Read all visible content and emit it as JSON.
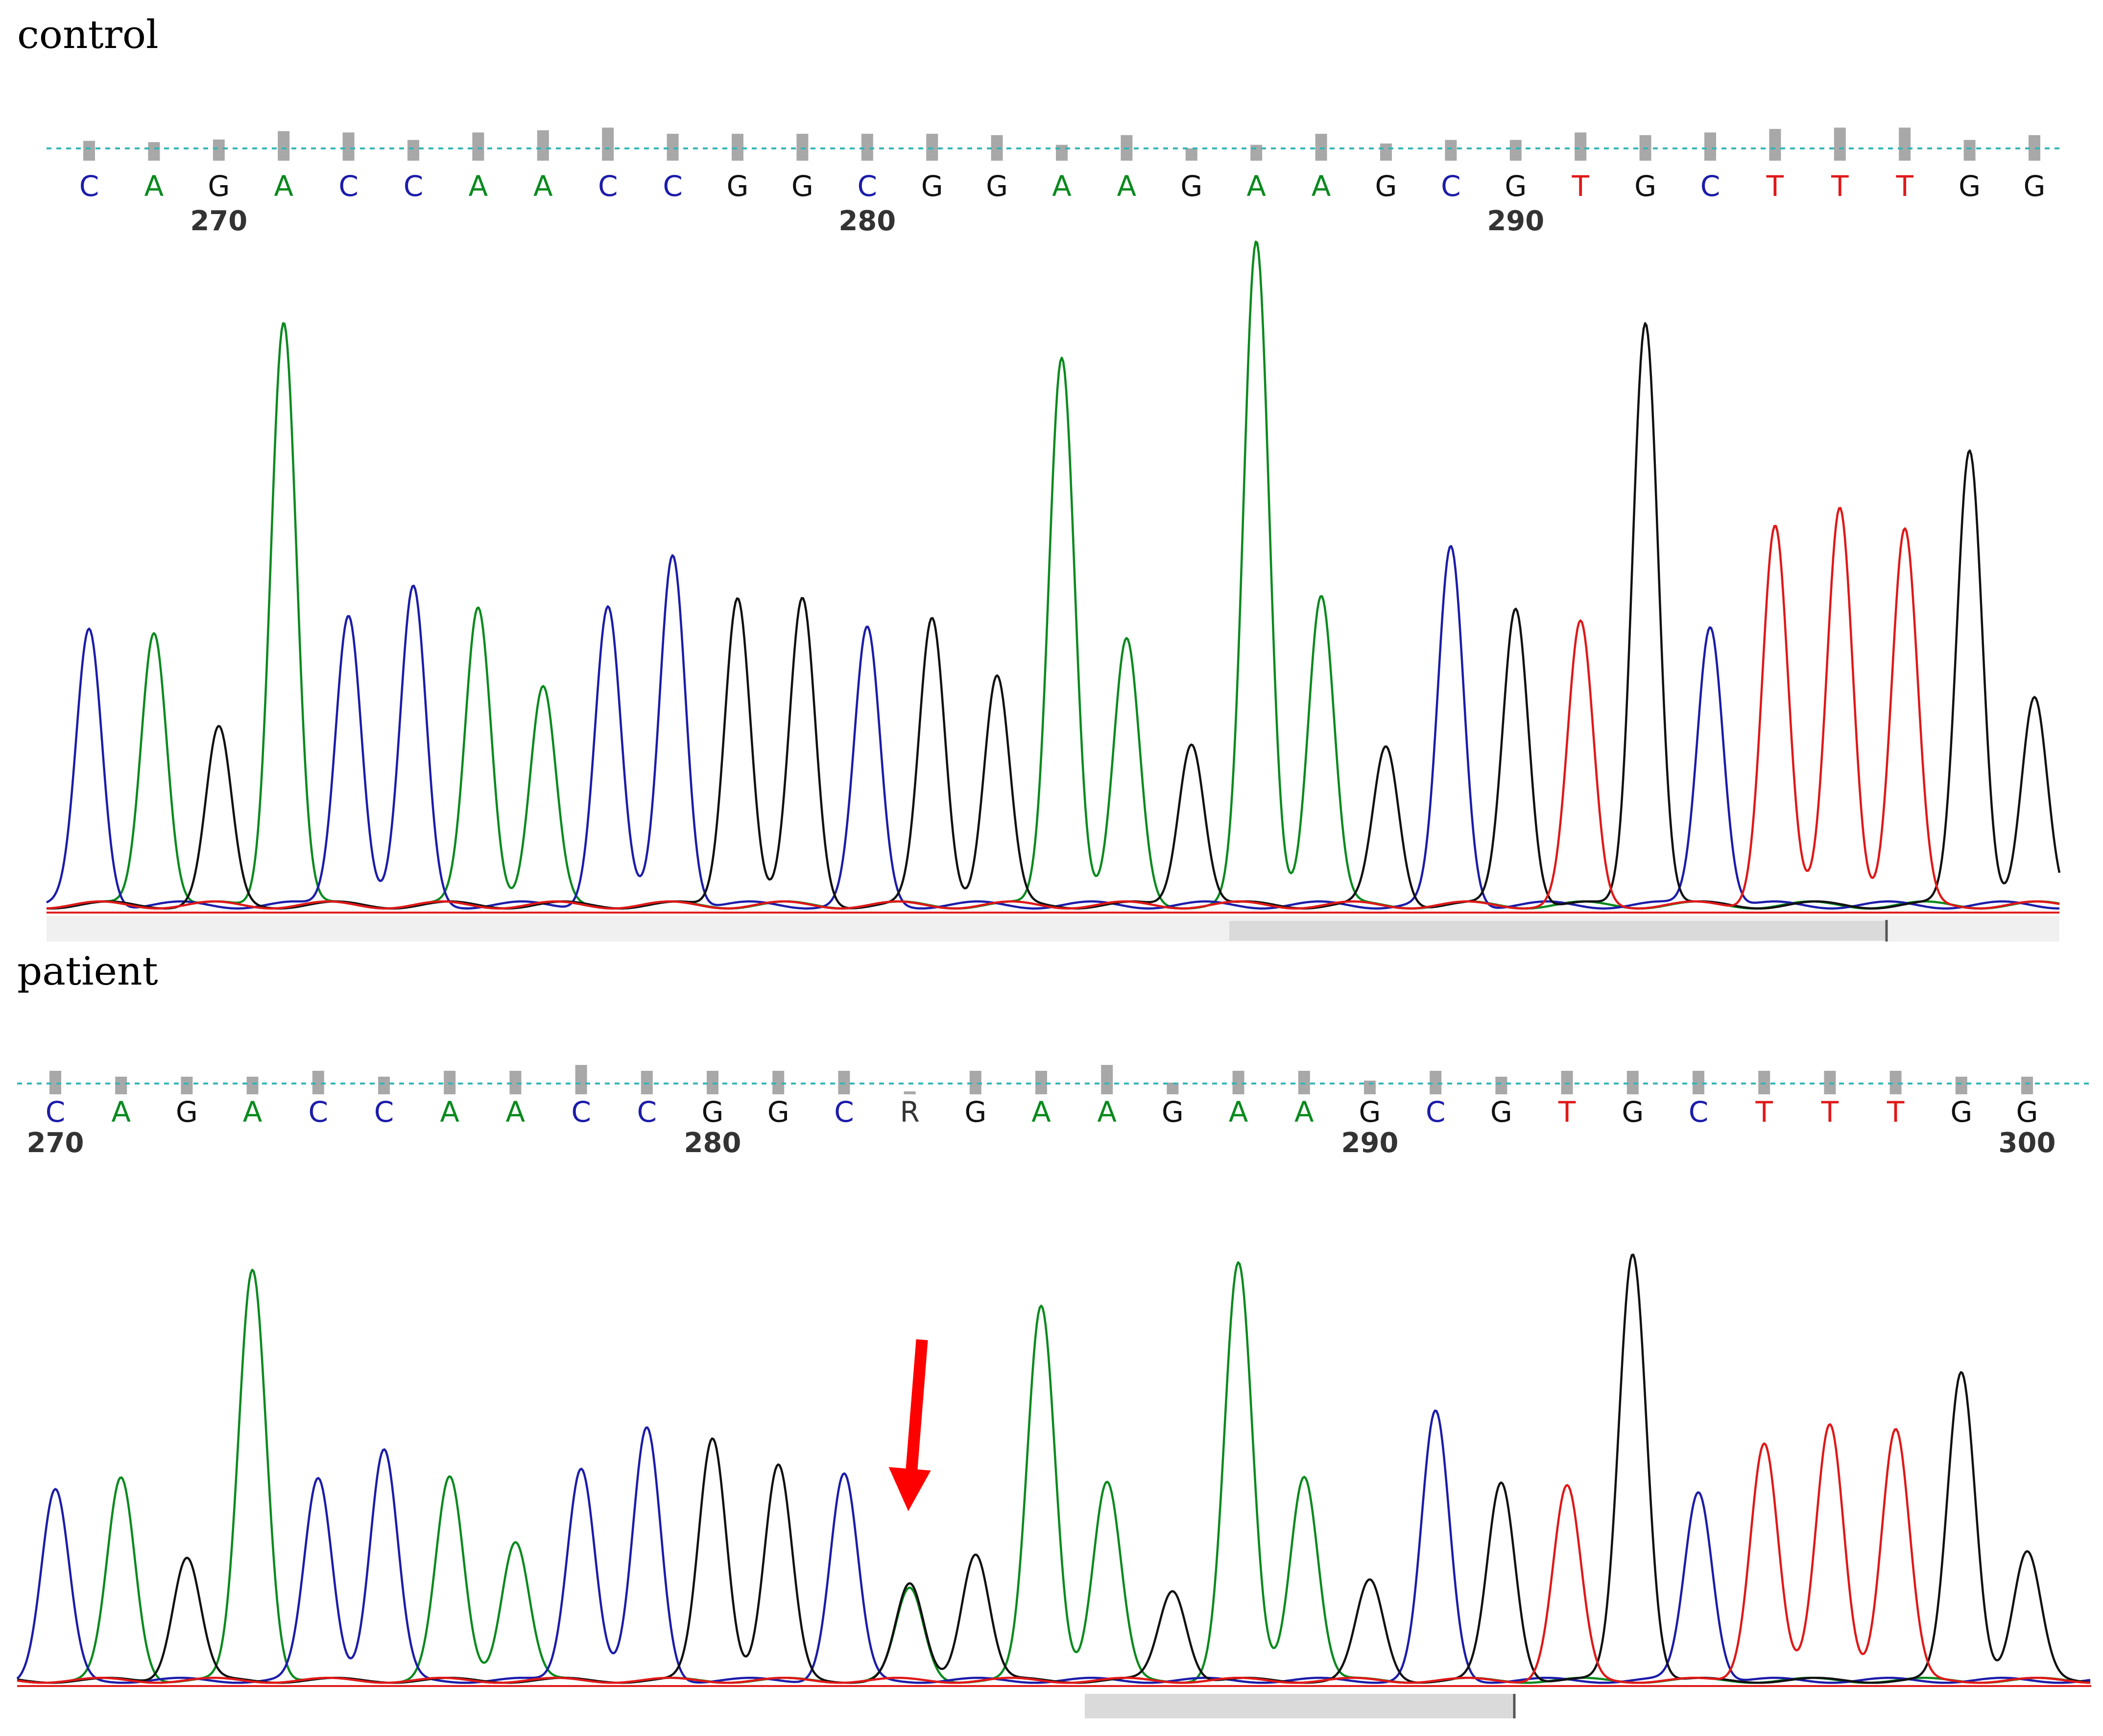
{
  "colors": {
    "A": "#0a8a1e",
    "C": "#1c1caa",
    "G": "#111111",
    "T": "#e01818",
    "R": "#333333"
  },
  "arrow_color": "#ff0000",
  "panels": [
    {
      "id": "control",
      "label": "control",
      "bases": [
        "C",
        "A",
        "G",
        "A",
        "C",
        "C",
        "A",
        "A",
        "C",
        "C",
        "G",
        "G",
        "C",
        "G",
        "G",
        "A",
        "A",
        "G",
        "A",
        "A",
        "G",
        "C",
        "G",
        "T",
        "G",
        "C",
        "T",
        "T",
        "T",
        "G",
        "G"
      ],
      "quality": [
        0.45,
        0.42,
        0.48,
        0.67,
        0.64,
        0.47,
        0.64,
        0.69,
        0.75,
        0.61,
        0.61,
        0.61,
        0.61,
        0.61,
        0.58,
        0.36,
        0.58,
        0.28,
        0.36,
        0.61,
        0.39,
        0.47,
        0.47,
        0.64,
        0.58,
        0.64,
        0.72,
        0.75,
        0.75,
        0.47,
        0.58
      ],
      "positions": [
        {
          "number": "270",
          "base_index": 2
        },
        {
          "number": "280",
          "base_index": 12
        },
        {
          "number": "290",
          "base_index": 22
        }
      ],
      "peaks": [
        0.47,
        0.47,
        0.3,
        1.0,
        0.5,
        0.54,
        0.51,
        0.37,
        0.51,
        0.6,
        0.53,
        0.52,
        0.47,
        0.49,
        0.39,
        0.94,
        0.45,
        0.28,
        1.13,
        0.53,
        0.27,
        0.61,
        0.51,
        0.48,
        1.0,
        0.48,
        0.65,
        0.68,
        0.64,
        0.78,
        0.35
      ]
    },
    {
      "id": "patient",
      "label": "patient",
      "bases": [
        "C",
        "A",
        "G",
        "A",
        "C",
        "C",
        "A",
        "A",
        "C",
        "C",
        "G",
        "G",
        "C",
        "R",
        "G",
        "A",
        "A",
        "G",
        "A",
        "A",
        "G",
        "C",
        "G",
        "T",
        "G",
        "C",
        "T",
        "T",
        "T",
        "G",
        "G"
      ],
      "quality": [
        0.6,
        0.45,
        0.45,
        0.45,
        0.6,
        0.45,
        0.6,
        0.6,
        0.75,
        0.6,
        0.6,
        0.6,
        0.6,
        0.05,
        0.6,
        0.6,
        0.75,
        0.3,
        0.6,
        0.6,
        0.35,
        0.6,
        0.45,
        0.6,
        0.6,
        0.6,
        0.6,
        0.6,
        0.6,
        0.45,
        0.45
      ],
      "positions": [
        {
          "number": "270",
          "base_index": 0
        },
        {
          "number": "280",
          "base_index": 10
        },
        {
          "number": "290",
          "base_index": 20
        },
        {
          "number": "300",
          "base_index": 30
        }
      ],
      "peaks": [
        0.46,
        0.49,
        0.3,
        1.0,
        0.49,
        0.56,
        0.49,
        0.34,
        0.52,
        0.61,
        0.59,
        0.52,
        0.5,
        0.23,
        0.31,
        0.91,
        0.48,
        0.22,
        1.01,
        0.5,
        0.24,
        0.65,
        0.48,
        0.47,
        1.04,
        0.46,
        0.58,
        0.62,
        0.61,
        0.75,
        0.31
      ],
      "heterozygous": {
        "base_index": 13,
        "secondary": "A",
        "secondary_height": 0.22
      },
      "arrow_base_index": 13
    }
  ]
}
